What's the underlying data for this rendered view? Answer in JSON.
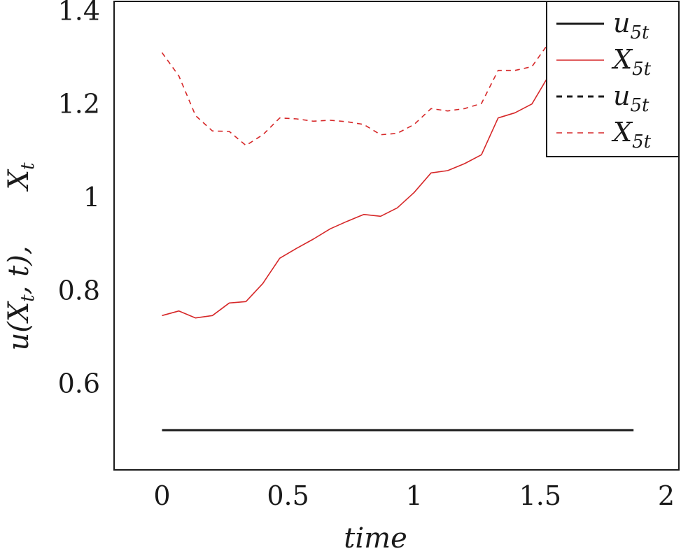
{
  "chart_data": {
    "type": "line",
    "xlabel": "time",
    "ylabel": "u(X_t, t),     X_t",
    "ylabel_parts": {
      "u": "u(X",
      "t_sub": "t",
      "mid": ", t),",
      "X": "X",
      "X_sub": "t"
    },
    "xlim": [
      -0.19,
      2.05
    ],
    "ylim": [
      0.415,
      1.42
    ],
    "x_ticks": [
      0,
      0.5,
      1,
      1.5,
      2
    ],
    "x_tick_labels": [
      "0",
      "0.5",
      "1",
      "1.5",
      "2"
    ],
    "y_ticks": [
      0.6,
      0.8,
      1.0,
      1.2,
      1.4
    ],
    "y_tick_labels": [
      "0.6",
      "0.8",
      "1",
      "1.2",
      "1.4"
    ],
    "legend_position": "top-right",
    "series": [
      {
        "name": "u5t",
        "name_main": "u",
        "name_sub": "5t",
        "color": "#1a1a1a",
        "style": "solid",
        "x": [
          0,
          1.87
        ],
        "y": [
          0.5,
          0.5
        ]
      },
      {
        "name": "X5t",
        "name_main": "X",
        "name_sub": "5t",
        "color": "#d62728",
        "style": "solid",
        "x": [
          0,
          0.067,
          0.133,
          0.2,
          0.267,
          0.333,
          0.4,
          0.467,
          0.533,
          0.6,
          0.667,
          0.733,
          0.8,
          0.867,
          0.933,
          1.0,
          1.067,
          1.133,
          1.2,
          1.267,
          1.333,
          1.4,
          1.467,
          1.533,
          1.56
        ],
        "y": [
          0.746,
          0.756,
          0.741,
          0.746,
          0.773,
          0.776,
          0.815,
          0.869,
          0.89,
          0.91,
          0.932,
          0.948,
          0.963,
          0.959,
          0.977,
          1.01,
          1.052,
          1.057,
          1.072,
          1.091,
          1.17,
          1.181,
          1.2,
          1.26,
          1.28
        ]
      },
      {
        "name": "u5t",
        "name_main": "u",
        "name_sub": "5t",
        "color": "#1a1a1a",
        "style": "dashed",
        "x": [],
        "y": []
      },
      {
        "name": "X5t",
        "name_main": "X",
        "name_sub": "5t",
        "color": "#d62728",
        "style": "dashed",
        "x": [
          0,
          0.067,
          0.133,
          0.2,
          0.267,
          0.333,
          0.4,
          0.467,
          0.533,
          0.6,
          0.667,
          0.733,
          0.8,
          0.867,
          0.933,
          1.0,
          1.067,
          1.133,
          1.2,
          1.267,
          1.333,
          1.4,
          1.467,
          1.533
        ],
        "y": [
          1.31,
          1.26,
          1.175,
          1.142,
          1.141,
          1.111,
          1.134,
          1.17,
          1.168,
          1.163,
          1.165,
          1.162,
          1.156,
          1.134,
          1.137,
          1.156,
          1.19,
          1.185,
          1.19,
          1.201,
          1.272,
          1.272,
          1.28,
          1.33
        ]
      }
    ]
  }
}
